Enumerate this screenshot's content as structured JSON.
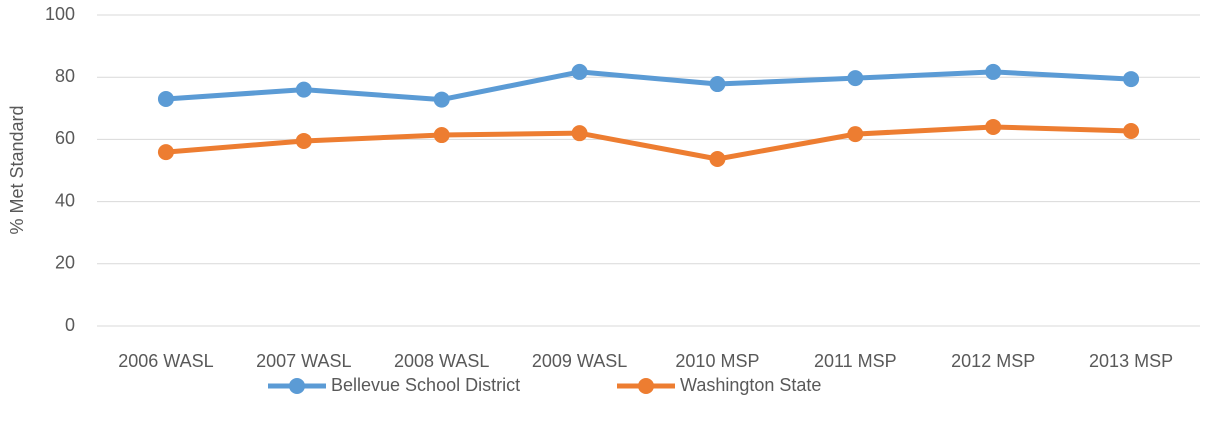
{
  "chart_data": {
    "type": "line",
    "y_label": "% Met Standard",
    "categories": [
      "2006 WASL",
      "2007 WASL",
      "2008 WASL",
      "2009 WASL",
      "2010 MSP",
      "2011 MSP",
      "2012 MSP",
      "2013 MSP"
    ],
    "series": [
      {
        "name": "Bellevue School District",
        "color": "#5b9bd5",
        "values": [
          73,
          76,
          72.8,
          81.7,
          77.8,
          79.7,
          81.7,
          79.4
        ]
      },
      {
        "name": "Washington State",
        "color": "#ed7d31",
        "values": [
          55.9,
          59.5,
          61.4,
          62,
          53.7,
          61.7,
          64,
          62.7
        ]
      }
    ],
    "ylim": [
      0,
      100
    ],
    "yticks": [
      0,
      20,
      40,
      60,
      80,
      100
    ],
    "grid": true,
    "legend": "bottom"
  }
}
